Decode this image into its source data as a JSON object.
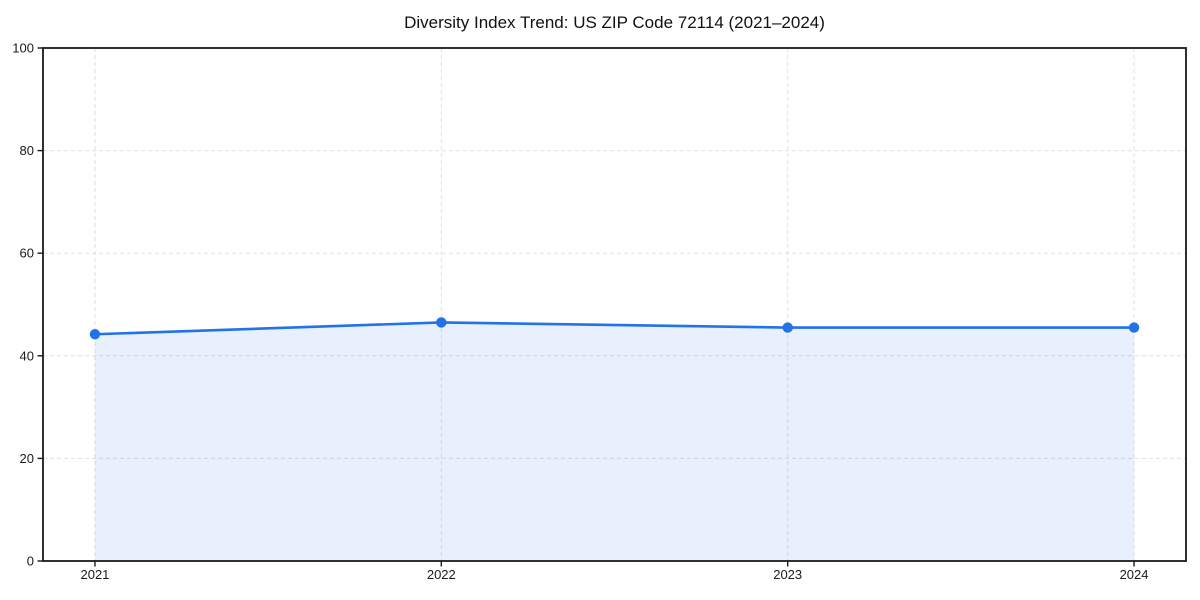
{
  "page": {
    "background_color": "#ffffff"
  },
  "chart_data": {
    "type": "area",
    "title": "Diversity Index Trend: US ZIP Code 72114 (2021–2024)",
    "x": [
      2021,
      2022,
      2023,
      2024
    ],
    "series": [
      {
        "name": "Diversity Index",
        "values": [
          44.2,
          46.5,
          45.5,
          45.5
        ]
      }
    ],
    "xlabel": "",
    "ylabel": "",
    "ylim": [
      0,
      100
    ],
    "yticks": [
      0,
      20,
      40,
      60,
      80,
      100
    ],
    "xticks": [
      2021,
      2022,
      2023,
      2024
    ],
    "grid": true,
    "grid_style": "dashed",
    "legend_position": "none",
    "line_color": "#2272e8",
    "marker_color": "#2272e8",
    "fill_color": "rgba(34,114,232,0.11)",
    "grid_color": "#e0e0e0",
    "spine_color": "#1a1a1a",
    "tick_label_color": "#1a1a1a"
  }
}
